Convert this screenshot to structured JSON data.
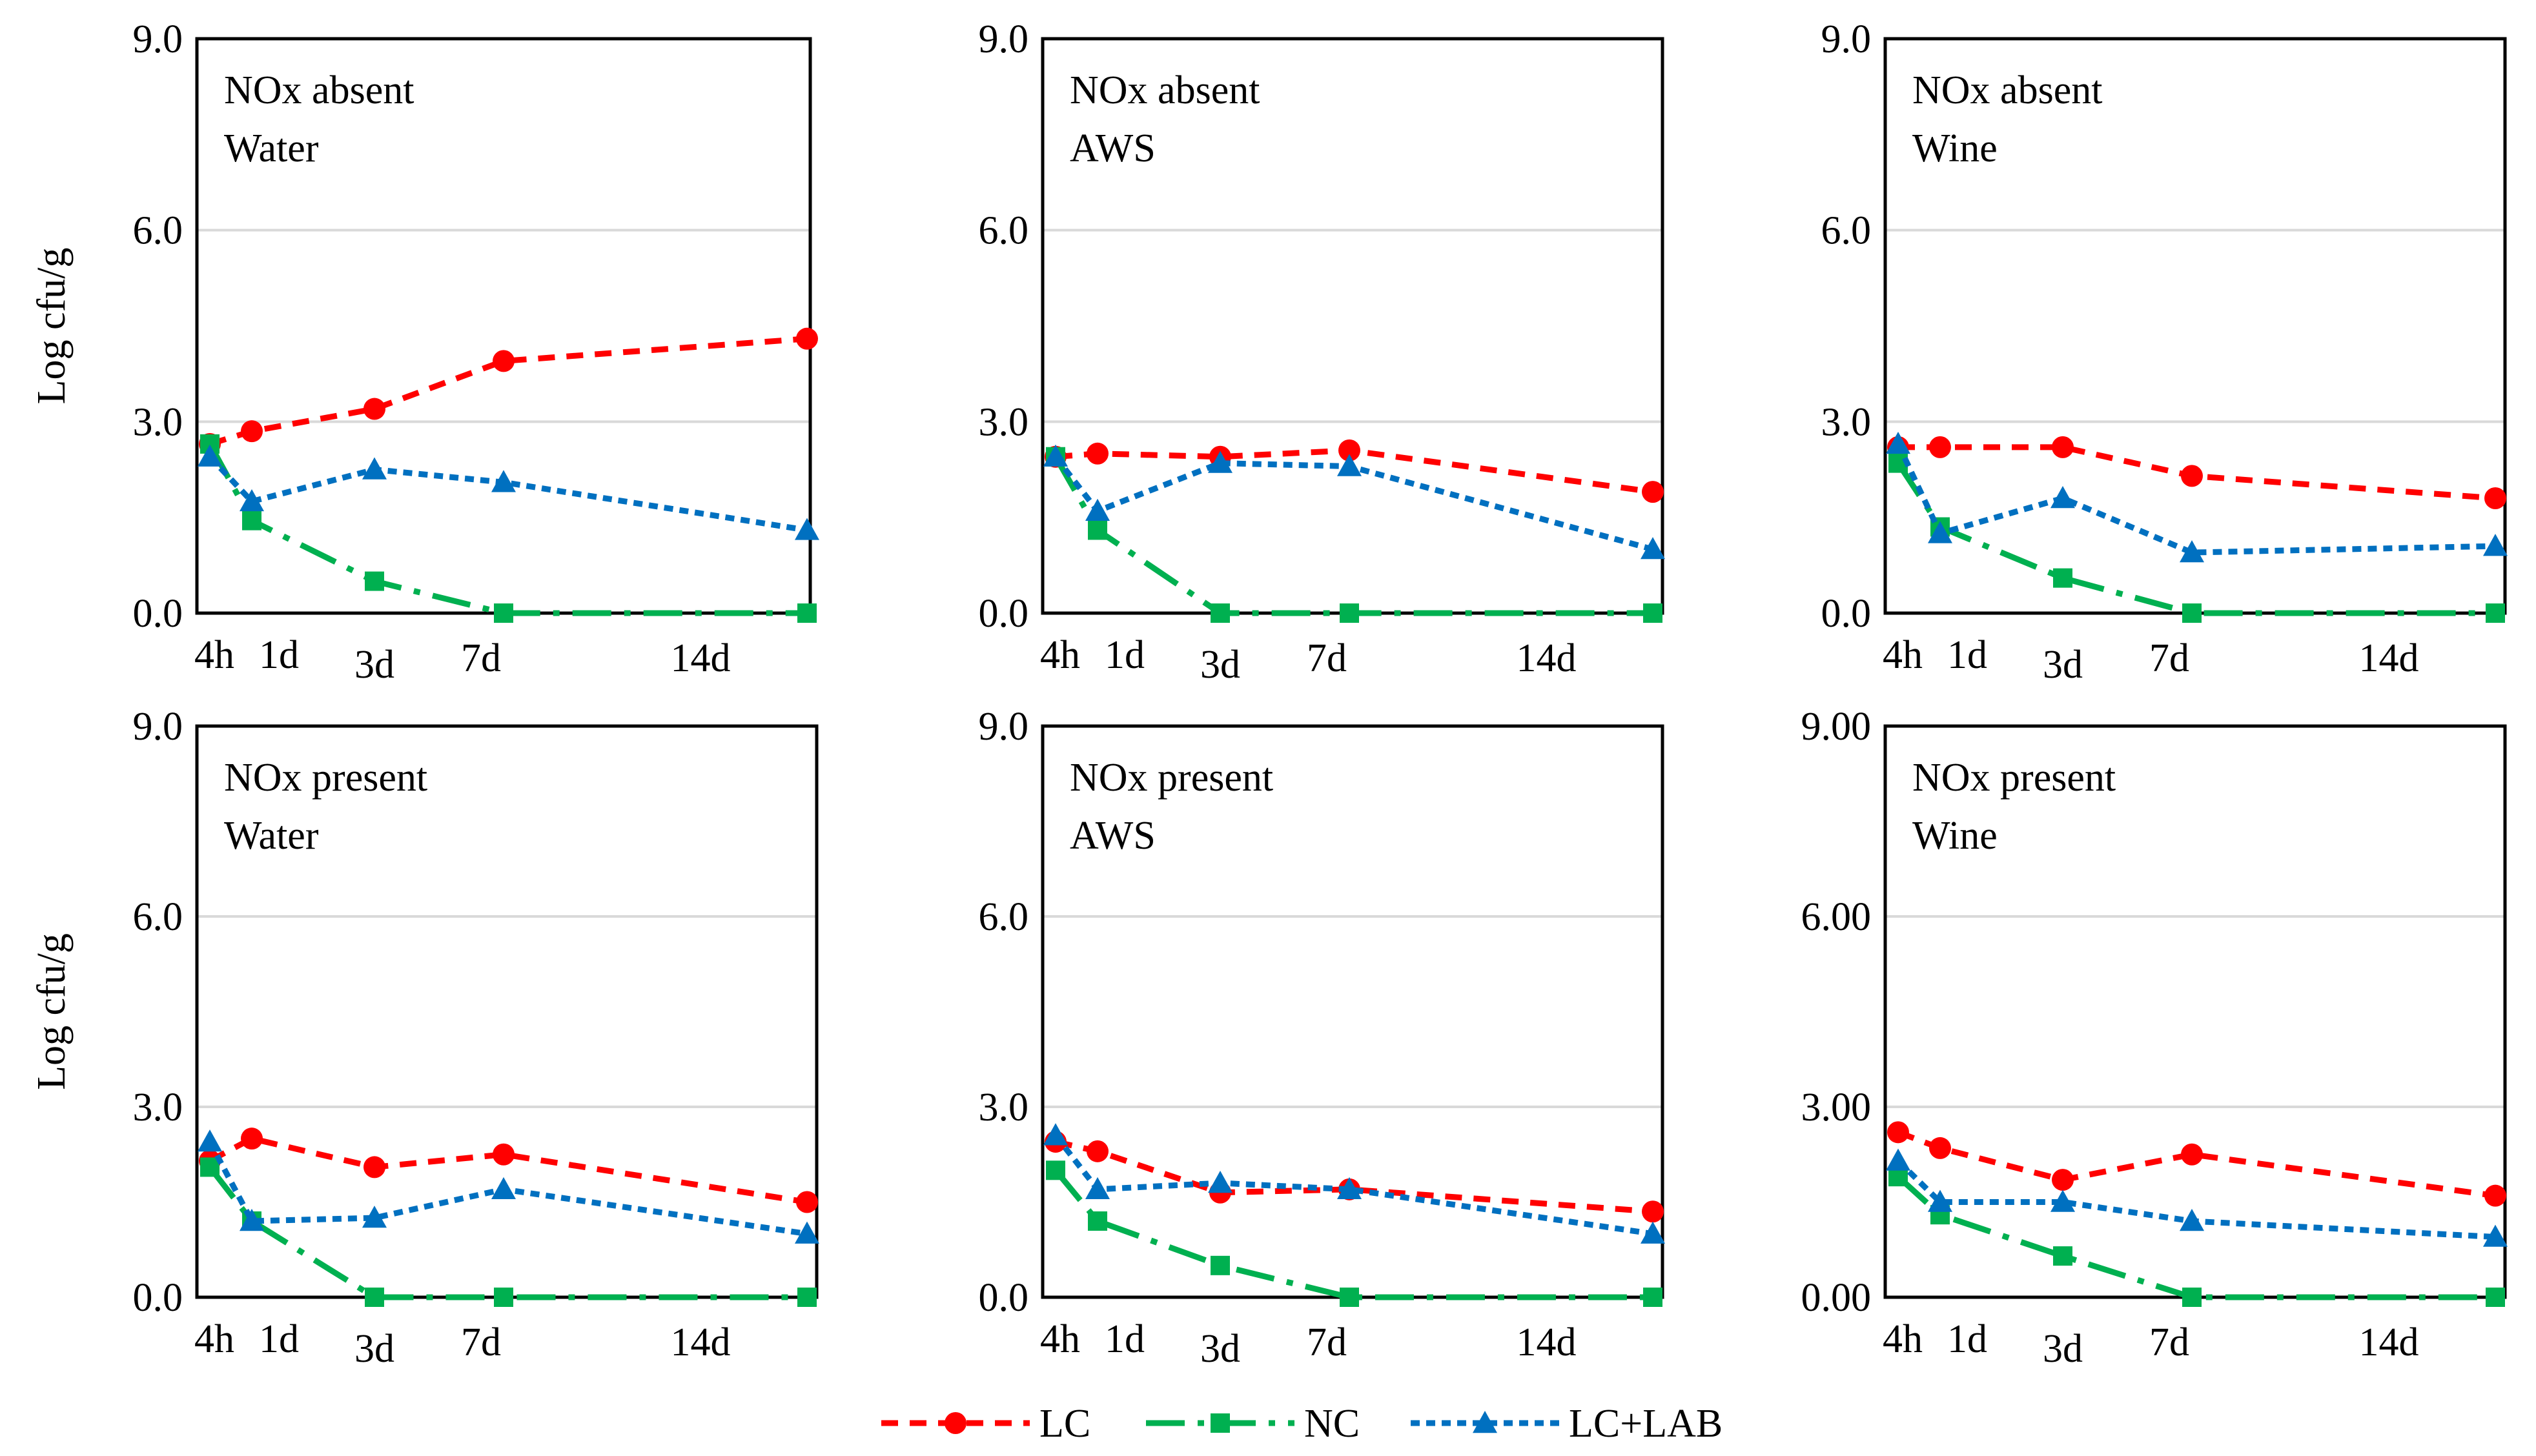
{
  "colors": {
    "LC": "#ff0000",
    "NC": "#00b050",
    "LC+LAB": "#0070c0",
    "grid": "#d9d9d9",
    "frame": "#000000"
  },
  "legend": {
    "items": [
      {
        "name": "LC",
        "marker": "circle",
        "dash": "medium"
      },
      {
        "name": "NC",
        "marker": "square",
        "dash": "long-dash-dot"
      },
      {
        "name": "LC+LAB",
        "marker": "triangle",
        "dash": "short"
      }
    ]
  },
  "chart_data": [
    {
      "type": "line",
      "title_lines": [
        "NOx absent",
        "Water"
      ],
      "ylabel": "Log cfu/g",
      "ylim": [
        0,
        9
      ],
      "yticks": [
        "0.0",
        "3.0",
        "6.0",
        "9.0"
      ],
      "x_days": [
        0.17,
        1,
        3,
        7,
        14
      ],
      "xtick_labels": [
        "4h",
        "1d",
        "3d",
        "7d",
        "14d"
      ],
      "series": [
        {
          "name": "LC",
          "x": [
            0.17,
            1,
            3,
            6,
            12
          ],
          "values": [
            2.65,
            2.85,
            3.2,
            3.95,
            4.3
          ]
        },
        {
          "name": "NC",
          "x": [
            0.17,
            1,
            3,
            6,
            12
          ],
          "values": [
            2.65,
            1.45,
            0.5,
            0,
            0
          ]
        },
        {
          "name": "LC+LAB",
          "x": [
            0.17,
            1,
            3,
            6,
            12
          ],
          "values": [
            2.45,
            1.75,
            2.25,
            2.05,
            1.3
          ]
        }
      ]
    },
    {
      "type": "line",
      "title_lines": [
        "NOx absent",
        "AWS"
      ],
      "ylabel": "",
      "ylim": [
        0,
        9
      ],
      "yticks": [
        "0.0",
        "3.0",
        "6.0",
        "9.0"
      ],
      "x_days": [
        0.17,
        1,
        3,
        7,
        14
      ],
      "xtick_labels": [
        "4h",
        "1d",
        "3d",
        "7d",
        "14d"
      ],
      "series": [
        {
          "name": "LC",
          "x": [
            0.17,
            1,
            3,
            6,
            12
          ],
          "values": [
            2.45,
            2.5,
            2.45,
            2.55,
            1.9
          ]
        },
        {
          "name": "NC",
          "x": [
            0.17,
            1,
            3,
            6,
            12
          ],
          "values": [
            2.45,
            1.3,
            0,
            0,
            0
          ]
        },
        {
          "name": "LC+LAB",
          "x": [
            0.17,
            1,
            3,
            6,
            12
          ],
          "values": [
            2.45,
            1.6,
            2.35,
            2.3,
            1.0
          ]
        }
      ]
    },
    {
      "type": "line",
      "title_lines": [
        "NOx absent",
        "Wine"
      ],
      "ylabel": "",
      "ylim": [
        0,
        9
      ],
      "yticks": [
        "0.0",
        "3.0",
        "6.0",
        "9.0"
      ],
      "x_days": [
        0.17,
        1,
        3,
        7,
        14
      ],
      "xtick_labels": [
        "4h",
        "1d",
        "3d",
        "7d",
        "14d"
      ],
      "series": [
        {
          "name": "LC",
          "x": [
            0.17,
            1,
            3,
            6,
            12
          ],
          "values": [
            2.6,
            2.6,
            2.6,
            2.15,
            1.8
          ]
        },
        {
          "name": "NC",
          "x": [
            0.17,
            1,
            3,
            6,
            12
          ],
          "values": [
            2.35,
            1.35,
            0.55,
            0,
            0
          ]
        },
        {
          "name": "LC+LAB",
          "x": [
            0.17,
            1,
            3,
            6,
            12
          ],
          "values": [
            2.65,
            1.25,
            1.8,
            0.95,
            1.05
          ]
        }
      ]
    },
    {
      "type": "line",
      "title_lines": [
        "NOx present",
        "Water"
      ],
      "ylabel": "Log cfu/g",
      "ylim": [
        0,
        9
      ],
      "yticks": [
        "0.0",
        "3.0",
        "6.0",
        "9.0"
      ],
      "x_days": [
        0.17,
        1,
        3,
        7,
        14
      ],
      "xtick_labels": [
        "4h",
        "1d",
        "3d",
        "7d",
        "14d"
      ],
      "series": [
        {
          "name": "LC",
          "x": [
            0.17,
            1,
            3,
            6,
            12
          ],
          "values": [
            2.15,
            2.5,
            2.05,
            2.25,
            1.5
          ]
        },
        {
          "name": "NC",
          "x": [
            0.17,
            1,
            3,
            6,
            12
          ],
          "values": [
            2.05,
            1.2,
            0,
            0,
            0
          ]
        },
        {
          "name": "LC+LAB",
          "x": [
            0.17,
            1,
            3,
            6,
            12
          ],
          "values": [
            2.45,
            1.2,
            1.25,
            1.7,
            1.0
          ]
        }
      ]
    },
    {
      "type": "line",
      "title_lines": [
        "NOx present",
        "AWS"
      ],
      "ylabel": "",
      "ylim": [
        0,
        9
      ],
      "yticks": [
        "0.0",
        "3.0",
        "6.0",
        "9.0"
      ],
      "x_days": [
        0.17,
        1,
        3,
        7,
        14
      ],
      "xtick_labels": [
        "4h",
        "1d",
        "3d",
        "7d",
        "14d"
      ],
      "series": [
        {
          "name": "LC",
          "x": [
            0.17,
            1,
            3,
            6,
            12
          ],
          "values": [
            2.45,
            2.3,
            1.65,
            1.7,
            1.35
          ]
        },
        {
          "name": "NC",
          "x": [
            0.17,
            1,
            3,
            6,
            12
          ],
          "values": [
            2.0,
            1.2,
            0.5,
            0,
            0
          ]
        },
        {
          "name": "LC+LAB",
          "x": [
            0.17,
            1,
            3,
            6,
            12
          ],
          "values": [
            2.55,
            1.7,
            1.8,
            1.7,
            1.0
          ]
        }
      ]
    },
    {
      "type": "line",
      "title_lines": [
        "NOx present",
        "Wine"
      ],
      "ylabel": "",
      "ylim": [
        0,
        9
      ],
      "yticks": [
        "0.00",
        "3.00",
        "6.00",
        "9.00"
      ],
      "x_days": [
        0.17,
        1,
        3,
        7,
        14
      ],
      "xtick_labels": [
        "4h",
        "1d",
        "3d",
        "7d",
        "14d"
      ],
      "series": [
        {
          "name": "LC",
          "x": [
            0.17,
            1,
            3,
            6,
            12
          ],
          "values": [
            2.6,
            2.35,
            1.85,
            2.25,
            1.6
          ]
        },
        {
          "name": "NC",
          "x": [
            0.17,
            1,
            3,
            6,
            12
          ],
          "values": [
            1.9,
            1.3,
            0.65,
            0,
            0
          ]
        },
        {
          "name": "LC+LAB",
          "x": [
            0.17,
            1,
            3,
            6,
            12
          ],
          "values": [
            2.15,
            1.5,
            1.5,
            1.2,
            0.95
          ]
        }
      ]
    }
  ]
}
